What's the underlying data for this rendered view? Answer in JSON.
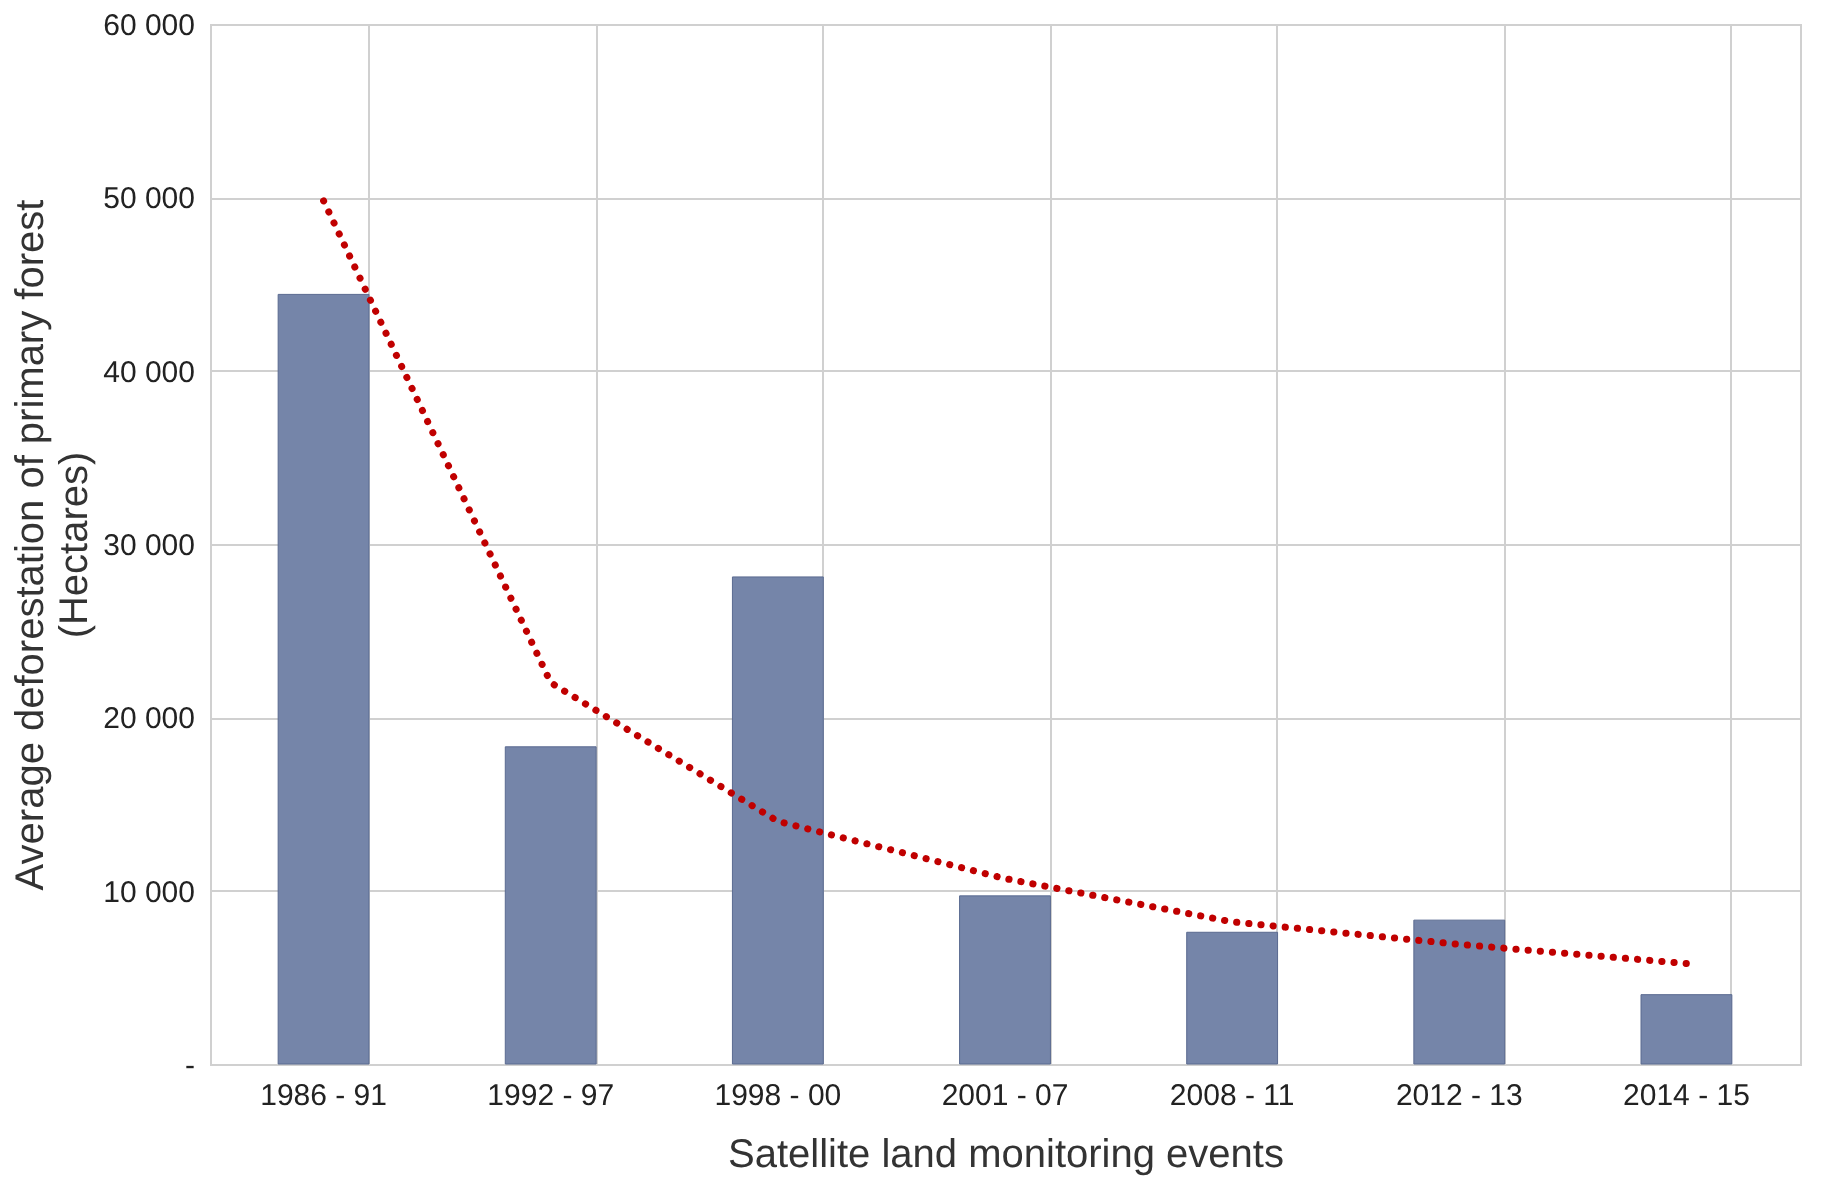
{
  "chart_data": {
    "type": "bar",
    "xlabel": "Satellite land monitoring events",
    "ylabel": "Average deforestation of primary forest\n(Hectares)",
    "categories": [
      "1986 - 91",
      "1992 - 97",
      "1998 - 00",
      "2001 - 07",
      "2008 - 11",
      "2012 - 13",
      "2014 - 15"
    ],
    "series": [
      {
        "color": "#7585a9",
        "values": [
          44400,
          18300,
          28100,
          9700,
          7600,
          8300,
          4000
        ]
      },
      {
        "type": "line",
        "color": "#c00000",
        "line_style": "dotted",
        "values": [
          49800,
          22000,
          14000,
          10700,
          8200,
          6900,
          5800
        ]
      }
    ],
    "ylim": [
      0,
      60000
    ],
    "yticks": [
      {
        "value": 0,
        "label": "-"
      },
      {
        "value": 10000,
        "label": "10 000"
      },
      {
        "value": 20000,
        "label": "20 000"
      },
      {
        "value": 30000,
        "label": "30 000"
      },
      {
        "value": 40000,
        "label": "40 000"
      },
      {
        "value": 50000,
        "label": "50 000"
      },
      {
        "value": 60000,
        "label": "60 000"
      }
    ],
    "grid": true
  }
}
